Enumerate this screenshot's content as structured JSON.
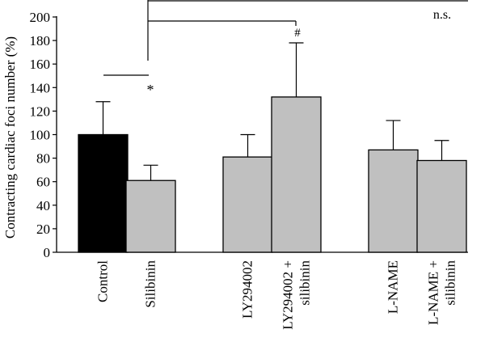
{
  "chart_data": {
    "type": "bar",
    "ylabel": "Contracting cardiac foci number (%)",
    "ylim": [
      0,
      200
    ],
    "yticks": [
      0,
      20,
      40,
      60,
      80,
      100,
      120,
      140,
      160,
      180,
      200
    ],
    "grid": false,
    "bars": [
      {
        "label": "Control",
        "value": 100,
        "error": 28,
        "color": "#000000"
      },
      {
        "label": "Silibinin",
        "value": 61,
        "error": 13,
        "color": "#c0c0c0"
      },
      {
        "label": "LY294002",
        "value": 81,
        "error": 19,
        "color": "#c0c0c0"
      },
      {
        "label": "LY294002 +\nsilibinin",
        "value": 132,
        "error": 46,
        "color": "#c0c0c0"
      },
      {
        "label": "L-NAME",
        "value": 87,
        "error": 25,
        "color": "#c0c0c0"
      },
      {
        "label": "L-NAME +\nsilibinin",
        "value": 78,
        "error": 17,
        "color": "#c0c0c0"
      }
    ],
    "annotations": [
      "*",
      "#",
      "n.s."
    ]
  }
}
